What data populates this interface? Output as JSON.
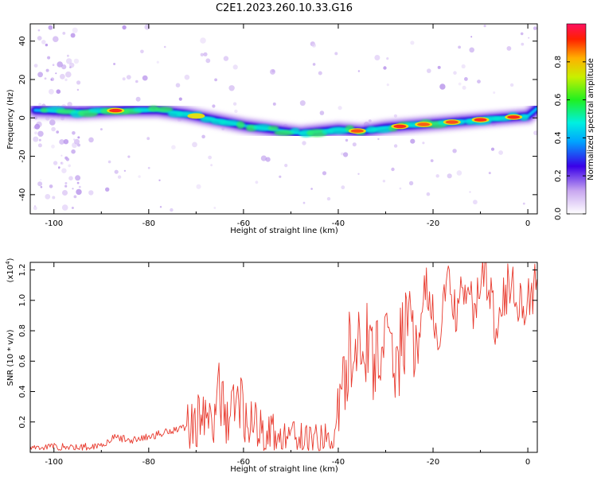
{
  "title": "C2E1.2023.260.10.33.G16",
  "chart_data": [
    {
      "type": "heatmap",
      "xlabel": "Height of straight line (km)",
      "ylabel": "Frequency (Hz)",
      "xlim": [
        -105,
        2
      ],
      "ylim": [
        -50,
        49
      ],
      "x_ticks": [
        -100,
        -80,
        -60,
        -40,
        -20,
        0
      ],
      "y_ticks": [
        40,
        20,
        0,
        -20,
        -40
      ],
      "ridge": {
        "x": [
          -104,
          -95,
          -85,
          -78,
          -72,
          -66,
          -60,
          -54,
          -48,
          -44,
          -40,
          -35,
          -30,
          -25,
          -20,
          -15,
          -10,
          -5,
          0,
          2
        ],
        "y": [
          4,
          3,
          4,
          4,
          2,
          -1,
          -4,
          -6,
          -8,
          -7,
          -6,
          -7,
          -5,
          -4,
          -3,
          -2,
          -1,
          0,
          1,
          5
        ]
      },
      "colorbar": {
        "label": "Normalized spectral amplitude",
        "range": [
          0,
          1
        ],
        "ticks": [
          "0.0",
          "0.2",
          "0.4",
          "0.6",
          "0.8"
        ]
      }
    },
    {
      "type": "line",
      "xlabel": "Height of straight line (km)",
      "ylabel": "SNR (10 * v/v)",
      "ylabel_multiplier": "(x10",
      "ylabel_exponent": "4",
      "ylabel_suffix": ")",
      "xlim": [
        -105,
        2
      ],
      "ylim": [
        0,
        1.25
      ],
      "x_ticks": [
        -100,
        -80,
        -60,
        -40,
        -20,
        0
      ],
      "y_ticks": [
        0.2,
        0.4,
        0.6,
        0.8,
        1.0,
        1.2
      ],
      "series": [
        {
          "color": "#e83a2e",
          "x": [
            -105,
            -100,
            -95,
            -90,
            -87,
            -84,
            -80,
            -76,
            -72,
            -69,
            -67,
            -65,
            -63,
            -61,
            -59,
            -57,
            -55,
            -52,
            -48,
            -44,
            -41,
            -39,
            -37,
            -35,
            -33,
            -31,
            -29,
            -27,
            -25,
            -23,
            -22,
            -21,
            -19,
            -17,
            -15,
            -13,
            -11,
            -9,
            -7,
            -5,
            -3,
            -1,
            1,
            2
          ],
          "y": [
            0.03,
            0.04,
            0.03,
            0.05,
            0.1,
            0.08,
            0.1,
            0.14,
            0.17,
            0.25,
            0.18,
            0.36,
            0.22,
            0.38,
            0.2,
            0.16,
            0.13,
            0.1,
            0.08,
            0.07,
            0.08,
            0.45,
            0.7,
            0.85,
            0.55,
            0.75,
            0.58,
            0.68,
            0.85,
            0.62,
            1.18,
            0.95,
            0.75,
            1.1,
            0.92,
            1.05,
            0.95,
            1.22,
            0.88,
            1.05,
            1.12,
            0.95,
            1.05,
            1.15
          ]
        }
      ]
    }
  ]
}
